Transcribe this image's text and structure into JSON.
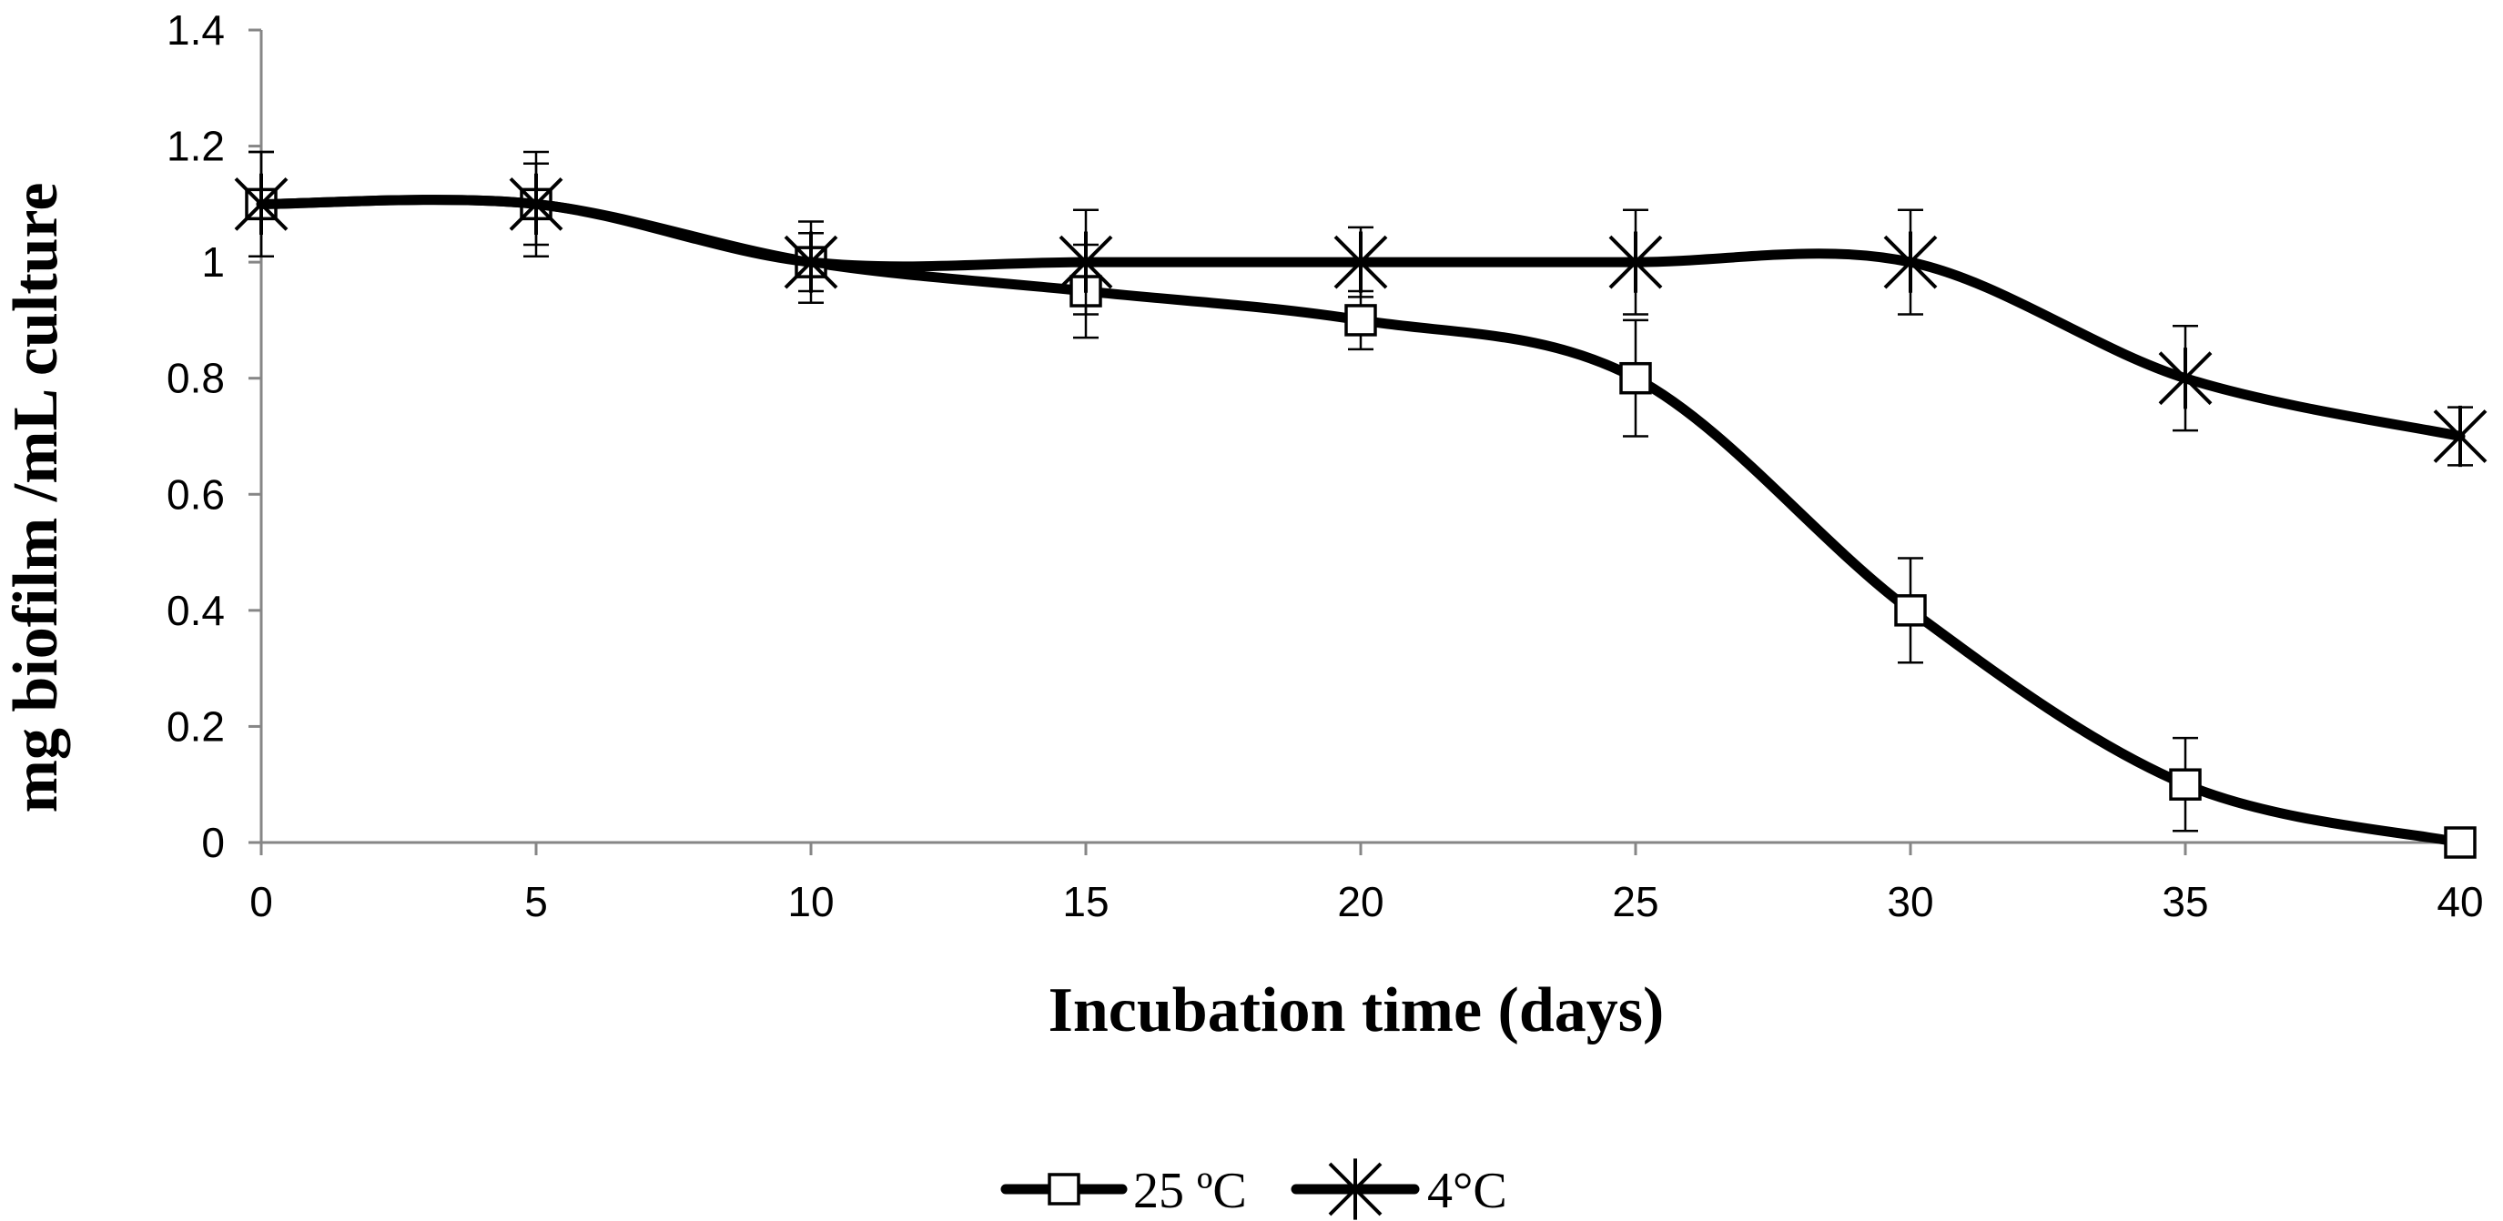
{
  "chart_data": {
    "type": "line",
    "title": "",
    "xlabel": "Incubation time (days)",
    "ylabel": "mg biofilm /mL culture",
    "x": [
      0,
      5,
      10,
      15,
      20,
      25,
      30,
      35,
      40
    ],
    "x_ticks": [
      "0",
      "5",
      "10",
      "15",
      "20",
      "25",
      "30",
      "35",
      "40"
    ],
    "xlim": [
      0,
      40
    ],
    "y_ticks": [
      "0",
      "0.2",
      "0.4",
      "0.6",
      "0.8",
      "1",
      "1.2",
      "1.4"
    ],
    "ylim": [
      0,
      1.4
    ],
    "grid": false,
    "legend_position": "bottom",
    "series": [
      {
        "name": "25 ºC",
        "marker": "square",
        "smooth": true,
        "values": [
          1.1,
          1.1,
          1.0,
          0.95,
          0.9,
          0.8,
          0.4,
          0.1,
          0.0
        ],
        "errors": [
          0.09,
          0.07,
          0.07,
          0.08,
          0.05,
          0.1,
          0.09,
          0.08,
          0.0
        ]
      },
      {
        "name": "4°C",
        "marker": "star",
        "smooth": true,
        "values": [
          1.1,
          1.1,
          1.0,
          1.0,
          1.0,
          1.0,
          1.0,
          0.8,
          0.7
        ],
        "errors": [
          0.09,
          0.09,
          0.05,
          0.09,
          0.06,
          0.09,
          0.09,
          0.09,
          0.05
        ]
      }
    ]
  }
}
